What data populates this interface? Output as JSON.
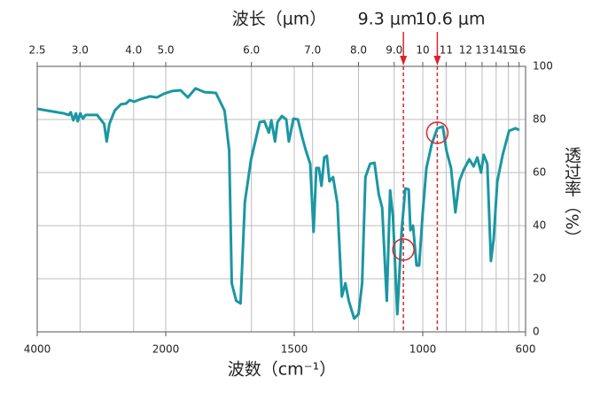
{
  "chart_data": {
    "type": "line",
    "title": "波长（μm）",
    "x_label": "波数（cm⁻¹）",
    "y_label": "透过率（%）",
    "xlim": [
      4000,
      600
    ],
    "xticks": [
      4000,
      2000,
      1500,
      1000,
      600
    ],
    "x_compression": {
      "above": 2000,
      "factor": 4
    },
    "top_ticks": [
      {
        "value": 2.5,
        "label": "2.5"
      },
      {
        "value": 3,
        "label": "3.0"
      },
      {
        "value": 4,
        "label": "4.0"
      },
      {
        "value": 5,
        "label": "5.0"
      },
      {
        "value": 6,
        "label": "6.0"
      },
      {
        "value": 7,
        "label": "7.0"
      },
      {
        "value": 8,
        "label": "8.0"
      },
      {
        "value": 9,
        "label": "9.0"
      },
      10,
      11,
      12,
      13,
      14,
      15,
      16
    ],
    "ylim": [
      0,
      100
    ],
    "yticks": [
      0,
      20,
      40,
      60,
      80,
      100
    ],
    "grid": true,
    "markers": [
      {
        "label": "9.3 μm",
        "wavelength": 9.3,
        "transmittance": 31
      },
      {
        "label": "10.6 μm",
        "wavelength": 10.6,
        "transmittance": 75
      }
    ],
    "marker_color": "#d7262b",
    "series": [
      {
        "color": "#1a97a3",
        "x": [
          4000,
          3589,
          3507,
          3479,
          3438,
          3397,
          3370,
          3329,
          3288,
          3247,
          3068,
          2959,
          2918,
          2877,
          2795,
          2699,
          2616,
          2562,
          2493,
          2384,
          2247,
          2137,
          2027,
          1976,
          1942,
          1914,
          1884,
          1849,
          1805,
          1771,
          1753,
          1743,
          1726,
          1709,
          1692,
          1668,
          1634,
          1616,
          1599,
          1589,
          1575,
          1565,
          1548,
          1531,
          1521,
          1503,
          1486,
          1469,
          1455,
          1438,
          1425,
          1414,
          1404,
          1394,
          1383,
          1373,
          1363,
          1349,
          1332,
          1315,
          1301,
          1288,
          1267,
          1250,
          1236,
          1223,
          1205,
          1188,
          1171,
          1158,
          1140,
          1127,
          1116,
          1099,
          1082,
          1068,
          1055,
          1048,
          1038,
          1024,
          1014,
          1000,
          986,
          965,
          943,
          922,
          908,
          890,
          873,
          858,
          841,
          819,
          802,
          788,
          773,
          763,
          749,
          735,
          724,
          710,
          689,
          664,
          639,
          625
        ],
        "values": [
          84,
          82.3,
          81.7,
          82.7,
          79.7,
          82.3,
          79.3,
          82.3,
          80.3,
          81.7,
          81.7,
          78.3,
          71.7,
          78.3,
          83.3,
          85.7,
          86,
          87.3,
          86.7,
          87.7,
          88.7,
          88.3,
          89.7,
          90.7,
          91,
          88.3,
          91.7,
          90.3,
          90,
          83.3,
          68.3,
          18.3,
          11.7,
          10.7,
          49,
          65,
          79,
          79.3,
          75,
          79.7,
          71.7,
          79,
          81.3,
          80,
          71.7,
          80.3,
          80,
          73.3,
          68.3,
          63.3,
          37.7,
          61.7,
          61.7,
          55,
          65.7,
          66.3,
          56.7,
          58.3,
          48.3,
          13.3,
          18.3,
          11.7,
          5,
          6.7,
          18.3,
          58.3,
          63.3,
          63.7,
          51.7,
          46.7,
          11.7,
          53.3,
          43.3,
          6.7,
          38.3,
          54,
          53.7,
          38.3,
          40,
          25,
          25,
          45,
          61.7,
          70.7,
          76.7,
          77.3,
          68.3,
          61.7,
          45,
          56.7,
          61,
          65,
          62.3,
          65.7,
          60,
          66.7,
          63.3,
          26.7,
          35,
          56.7,
          66.7,
          75.7,
          76.7,
          76
        ]
      }
    ]
  }
}
